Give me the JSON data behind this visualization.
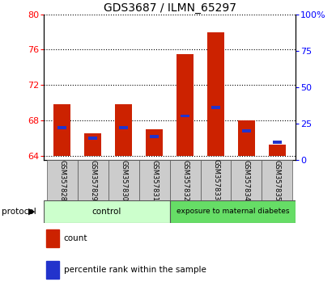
{
  "title": "GDS3687 / ILMN_65297",
  "samples": [
    "GSM357828",
    "GSM357829",
    "GSM357830",
    "GSM357831",
    "GSM357832",
    "GSM357833",
    "GSM357834",
    "GSM357835"
  ],
  "count_values": [
    69.8,
    66.5,
    69.8,
    67.0,
    75.5,
    78.0,
    68.0,
    65.3
  ],
  "percentile_values": [
    67.2,
    66.0,
    67.2,
    66.2,
    68.5,
    69.5,
    66.8,
    65.5
  ],
  "bar_base": 64,
  "left_yticks": [
    64,
    68,
    72,
    76,
    80
  ],
  "right_yticks": [
    0,
    25,
    50,
    75,
    100
  ],
  "ylim_left": [
    63.5,
    80
  ],
  "ylim_right": [
    0,
    100
  ],
  "bar_color": "#cc2200",
  "percentile_color": "#2233cc",
  "plot_bg": "#ffffff",
  "control_label": "control",
  "exposure_label": "exposure to maternal diabetes",
  "protocol_label": "protocol",
  "legend_count": "count",
  "legend_percentile": "percentile rank within the sample",
  "control_bg": "#ccffcc",
  "exposure_bg": "#66dd66",
  "xlabel_bg": "#cccccc",
  "bar_width": 0.55
}
